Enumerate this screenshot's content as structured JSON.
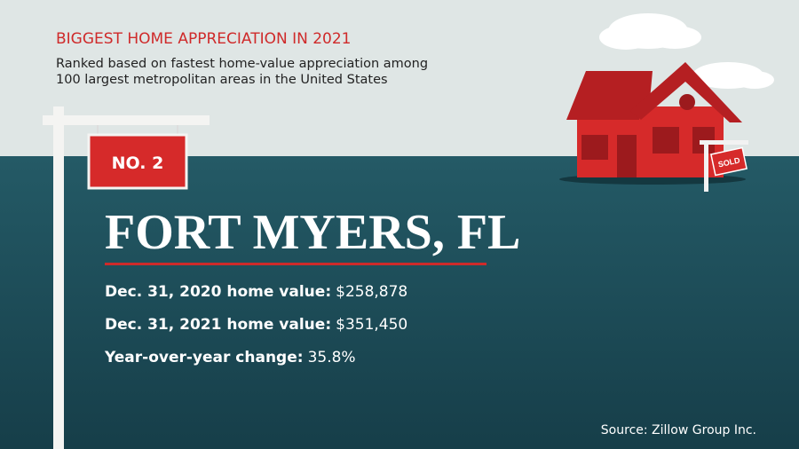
{
  "header": {
    "title": "BIGGEST HOME APPRECIATION IN 2021",
    "subtitle": [
      "Ranked based on fastest home-value appreciation among",
      "100 largest metropolitan areas in the United States"
    ]
  },
  "rank": "NO. 2",
  "city": "FORT MYERS, FL",
  "stats": [
    {
      "label": "Dec. 31, 2020 home value:",
      "value": "$258,878"
    },
    {
      "label": "Dec. 31, 2021 home value:",
      "value": "$351,450"
    },
    {
      "label": "Year-over-year change:",
      "value": "35.8%"
    }
  ],
  "house_sign": "SOLD",
  "source": "Source: Zillow Group Inc."
}
